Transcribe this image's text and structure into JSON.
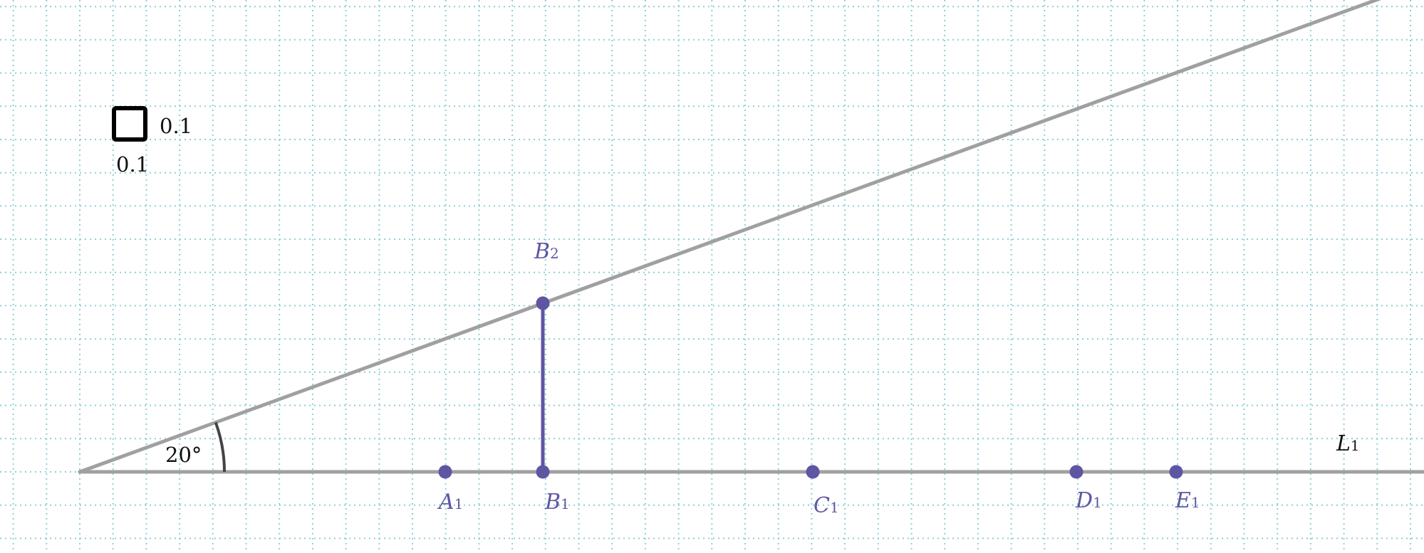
{
  "colors": {
    "grid": "#8fcfd6",
    "line": "#a0a0a0",
    "point": "#5e56a3",
    "angle_arc": "#444444",
    "text": "#111111"
  },
  "scale_indicator": {
    "icon": "square-icon",
    "x_unit": "0.1",
    "y_unit": "0.1"
  },
  "angle": {
    "label": "20°",
    "degrees": 20
  },
  "line_label": {
    "name": "L",
    "sub": "1"
  },
  "points_on_line": [
    {
      "name": "A",
      "sub": "1"
    },
    {
      "name": "B",
      "sub": "1"
    },
    {
      "name": "C",
      "sub": "1"
    },
    {
      "name": "D",
      "sub": "1"
    },
    {
      "name": "E",
      "sub": "1"
    }
  ],
  "point_on_ray": {
    "name": "B",
    "sub": "2"
  }
}
